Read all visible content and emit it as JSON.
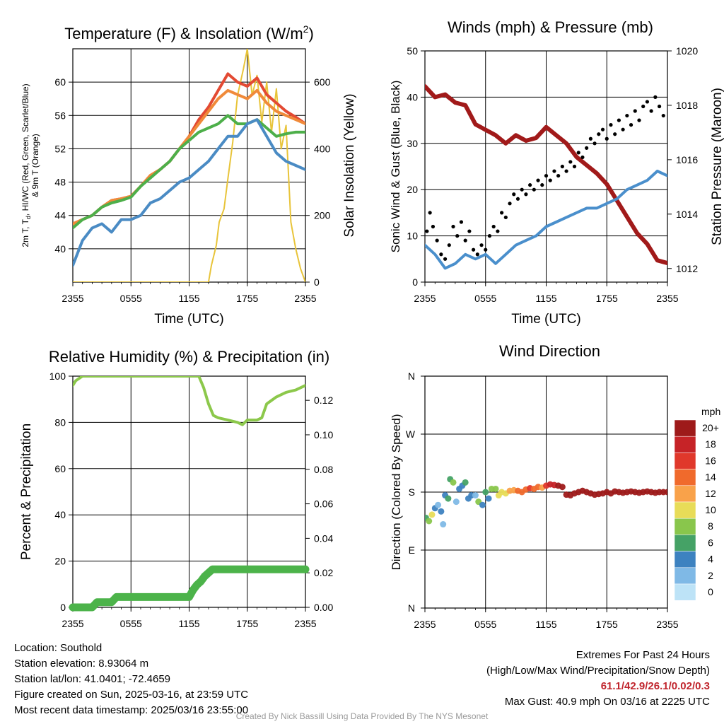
{
  "chart_data": [
    {
      "type": "line",
      "title": "Temperature (F) & Insolation (W/m",
      "title_sup": "2",
      "title_close": ")",
      "xlabel": "Time (UTC)",
      "ylabel_lines": [
        "2m T, T",
        "d",
        ", HI/WC (Red, Green, Scarlet/Blue)",
        "& 9m T (Orange)"
      ],
      "y2label": "Solar Insolation (Yellow)",
      "x_ticks": [
        "2355",
        "0555",
        "1155",
        "1755",
        "2355"
      ],
      "ylim": [
        36,
        64
      ],
      "y_ticks": [
        40,
        44,
        48,
        52,
        56,
        60
      ],
      "y2lim": [
        0,
        700
      ],
      "y2_ticks": [
        0,
        200,
        400,
        600
      ],
      "grid": true,
      "series": [
        {
          "color": "#e8c43a",
          "axis": "y2",
          "x": [
            0,
            3,
            6,
            9,
            12,
            14,
            14.3,
            14.8,
            15.1,
            15.6,
            16,
            16.5,
            17,
            17.6,
            18,
            18.5,
            19,
            19.5,
            20,
            20.5,
            21,
            21.5,
            22,
            22.5,
            23,
            23.5,
            24
          ],
          "values": [
            0,
            0,
            0,
            0,
            0,
            0,
            50,
            110,
            180,
            220,
            310,
            420,
            560,
            640,
            700,
            560,
            620,
            480,
            600,
            450,
            580,
            400,
            470,
            180,
            100,
            40,
            0
          ]
        },
        {
          "color": "#e34a33",
          "axis": "y",
          "x": [
            0,
            1,
            2,
            3,
            4,
            5,
            6,
            7,
            8,
            9,
            10,
            11,
            12,
            13,
            14,
            15,
            16,
            17,
            18,
            19,
            20,
            21,
            22,
            23,
            24
          ],
          "values": [
            43,
            43.5,
            44,
            45,
            45.8,
            46,
            46.3,
            47.5,
            48.8,
            49.5,
            50.5,
            52,
            53.5,
            55.5,
            57,
            59,
            61,
            60,
            59.5,
            60.5,
            58.5,
            57.5,
            56.5,
            55.8,
            55
          ]
        },
        {
          "color": "#f08a3a",
          "axis": "y",
          "x": [
            0,
            1,
            2,
            3,
            4,
            5,
            6,
            7,
            8,
            9,
            10,
            11,
            12,
            13,
            14,
            15,
            16,
            17,
            18,
            19,
            20,
            21,
            22,
            23,
            24
          ],
          "values": [
            43,
            43.5,
            44,
            45,
            45.8,
            46,
            46.3,
            47.5,
            48.8,
            49.5,
            50.5,
            52,
            53.5,
            55,
            56.5,
            58,
            59,
            58.5,
            58,
            59,
            57.5,
            56.5,
            56,
            55.5,
            55
          ]
        },
        {
          "color": "#4daf4a",
          "axis": "y",
          "x": [
            0,
            1,
            2,
            3,
            4,
            5,
            6,
            7,
            8,
            9,
            10,
            11,
            12,
            13,
            14,
            15,
            16,
            17,
            18,
            19,
            20,
            21,
            22,
            23,
            24
          ],
          "values": [
            42.5,
            43.5,
            44,
            45,
            45.5,
            45.8,
            46.2,
            47.5,
            48.5,
            49.5,
            50.5,
            52,
            53,
            54,
            54.5,
            55,
            56,
            55,
            55,
            55.5,
            54.5,
            53.5,
            53.8,
            54,
            54
          ]
        },
        {
          "color": "#4a8bc4",
          "axis": "y",
          "x": [
            0,
            1,
            2,
            3,
            4,
            5,
            6,
            7,
            8,
            9,
            10,
            11,
            12,
            13,
            14,
            15,
            16,
            17,
            18,
            19,
            20,
            21,
            22,
            23,
            24
          ],
          "values": [
            38,
            41,
            42.5,
            43,
            42,
            43.5,
            43.5,
            44,
            45.5,
            46,
            47,
            48,
            48.5,
            49.5,
            50.5,
            52,
            53.5,
            53.5,
            55,
            55.5,
            53.5,
            51.5,
            50.5,
            50,
            49.5
          ]
        }
      ]
    },
    {
      "type": "line",
      "title": "Winds (mph) & Pressure (mb)",
      "xlabel": "Time (UTC)",
      "ylabel": "Sonic Wind & Gust (Blue, Black)",
      "y2label": "Station Pressure (Maroon)",
      "x_ticks": [
        "2355",
        "0555",
        "1155",
        "1755",
        "2355"
      ],
      "ylim": [
        0,
        50
      ],
      "y_ticks": [
        0,
        10,
        20,
        30,
        40,
        50
      ],
      "y2lim": [
        1011.5,
        1020
      ],
      "y2_ticks": [
        1012,
        1014,
        1016,
        1018,
        1020
      ],
      "grid": true,
      "series": [
        {
          "color": "#a11a1a",
          "axis": "y2",
          "x": [
            0,
            1,
            2,
            3,
            4,
            5,
            6,
            7,
            8,
            9,
            10,
            11,
            12,
            13,
            14,
            15,
            16,
            17,
            18,
            19,
            20,
            21,
            22,
            23,
            24
          ],
          "values": [
            1018.7,
            1018.3,
            1018.4,
            1018.1,
            1018,
            1017.3,
            1017.1,
            1016.9,
            1016.6,
            1016.9,
            1016.7,
            1016.8,
            1017.2,
            1016.9,
            1016.6,
            1016.1,
            1015.8,
            1015.5,
            1015.1,
            1014.5,
            1013.9,
            1013.3,
            1012.9,
            1012.3,
            1012.2
          ]
        },
        {
          "color": "#4a8fcc",
          "axis": "y",
          "x": [
            0,
            1,
            2,
            3,
            4,
            5,
            6,
            7,
            8,
            9,
            10,
            11,
            12,
            13,
            14,
            15,
            16,
            17,
            18,
            19,
            20,
            21,
            22,
            23,
            24
          ],
          "values": [
            8,
            6,
            3,
            4,
            6,
            5,
            6,
            4,
            6,
            8,
            9,
            10,
            12,
            13,
            14,
            15,
            16,
            16,
            17,
            18,
            20,
            21,
            22,
            24,
            23
          ]
        }
      ],
      "gust_points": {
        "color": "#000000",
        "x": [
          0.2,
          0.5,
          0.8,
          1.2,
          1.6,
          2,
          2.4,
          2.8,
          3.2,
          3.6,
          4,
          4.4,
          4.8,
          5.2,
          5.6,
          6,
          6.4,
          6.8,
          7.2,
          7.6,
          8,
          8.4,
          8.8,
          9.2,
          9.6,
          10,
          10.4,
          10.8,
          11.2,
          11.6,
          12,
          12.4,
          12.8,
          13.2,
          13.6,
          14,
          14.4,
          14.8,
          15.2,
          15.6,
          16,
          16.4,
          16.8,
          17.2,
          17.6,
          18,
          18.4,
          18.8,
          19.2,
          19.6,
          20,
          20.4,
          20.8,
          21.2,
          21.6,
          22,
          22.4,
          22.8,
          23.2,
          23.6
        ],
        "values": [
          11,
          15,
          12,
          9,
          6,
          5,
          8,
          12,
          10,
          13,
          9,
          11,
          7,
          6,
          8,
          7,
          10,
          12,
          11,
          15,
          14,
          17,
          19,
          18,
          20,
          19,
          21,
          20,
          22,
          21,
          23,
          22,
          24,
          23,
          25,
          24,
          26,
          25,
          28,
          27,
          29,
          31,
          30,
          32,
          33,
          31,
          34,
          32,
          35,
          33,
          36,
          34,
          37,
          35,
          38,
          39,
          37,
          40,
          38,
          36
        ]
      }
    },
    {
      "type": "line",
      "title": "Relative Humidity (%) & Precipitation (in)",
      "ylabel": "Percent & Precipitation",
      "x_ticks": [
        "2355",
        "0555",
        "1155",
        "1755",
        "2355"
      ],
      "ylim": [
        0,
        100
      ],
      "y_ticks": [
        0,
        20,
        40,
        60,
        80,
        100
      ],
      "y2lim": [
        0,
        0.134
      ],
      "y2_ticks": [
        "0.00",
        "0.02",
        "0.04",
        "0.06",
        "0.08",
        "0.10",
        "0.12"
      ],
      "grid": true,
      "series": [
        {
          "color": "#8cc84b",
          "axis": "y",
          "x": [
            0,
            0.3,
            1,
            2,
            3,
            6,
            9,
            12,
            13,
            13.5,
            14,
            14.5,
            15,
            16,
            17,
            17.5,
            18,
            19,
            19.5,
            20,
            21,
            22,
            23,
            24
          ],
          "values": [
            96,
            98,
            100,
            100,
            100,
            100,
            100,
            100,
            100,
            95,
            88,
            83,
            82,
            81,
            80,
            79,
            81,
            81,
            82,
            88,
            91,
            93,
            94,
            96
          ]
        },
        {
          "color": "#4cb34a",
          "axis": "y2",
          "x": [
            0,
            2,
            2.5,
            4,
            4.5,
            6,
            8,
            10,
            12,
            12.4,
            12.8,
            13.2,
            13.6,
            14,
            14.4,
            15,
            17,
            20,
            24
          ],
          "values": [
            0,
            0,
            0.003,
            0.003,
            0.006,
            0.006,
            0.006,
            0.006,
            0.006,
            0.01,
            0.013,
            0.015,
            0.018,
            0.02,
            0.022,
            0.022,
            0.022,
            0.022,
            0.022
          ]
        }
      ]
    },
    {
      "type": "scatter",
      "title": "Wind Direction",
      "ylabel": "Direction (Colored By Speed)",
      "x_ticks": [
        "2355",
        "0555",
        "1155",
        "1755",
        "2355"
      ],
      "y_ticks": [
        "N",
        "E",
        "S",
        "W",
        "N"
      ],
      "ylim": [
        0,
        360
      ],
      "grid": true,
      "colorbar": {
        "title": "mph",
        "labels": [
          "20+",
          "18",
          "16",
          "14",
          "12",
          "10",
          "8",
          "6",
          "4",
          "2",
          "0"
        ],
        "colors": [
          "#9e1a1a",
          "#c62327",
          "#e0382b",
          "#f06a2c",
          "#f9a24a",
          "#e8dc58",
          "#89c64c",
          "#45a266",
          "#3d82c0",
          "#7fb9e6",
          "#bde3f7"
        ]
      },
      "points": {
        "x": [
          0.1,
          0.4,
          0.7,
          1,
          1.3,
          1.6,
          1.8,
          2,
          2.3,
          2.5,
          2.8,
          3.1,
          3.4,
          3.7,
          4,
          4.3,
          4.6,
          5,
          5.3,
          5.7,
          6,
          6.3,
          6.6,
          7,
          7.3,
          7.6,
          8,
          8.4,
          8.8,
          9.2,
          9.6,
          10,
          10.4,
          10.8,
          11.2,
          11.6,
          12,
          12.4,
          12.8,
          13.2,
          13.6,
          14,
          14.4,
          14.8,
          15.2,
          15.6,
          16,
          16.4,
          16.8,
          17.2,
          17.6,
          18,
          18.4,
          18.8,
          19.2,
          19.6,
          20,
          20.4,
          20.8,
          21.2,
          21.6,
          22,
          22.4,
          22.8,
          23.2,
          23.6,
          24
        ],
        "y": [
          140,
          135,
          145,
          155,
          160,
          150,
          130,
          175,
          170,
          200,
          195,
          165,
          185,
          190,
          195,
          170,
          175,
          175,
          165,
          160,
          180,
          170,
          185,
          185,
          175,
          180,
          178,
          182,
          183,
          182,
          180,
          184,
          186,
          185,
          188,
          187,
          190,
          192,
          191,
          190,
          188,
          176,
          175,
          178,
          180,
          182,
          180,
          178,
          176,
          177,
          178,
          180,
          178,
          181,
          180,
          179,
          180,
          181,
          180,
          179,
          180,
          181,
          180,
          179,
          180,
          180,
          180
        ],
        "speeds": [
          6,
          9,
          10,
          4,
          2,
          4,
          2,
          4,
          6,
          6,
          8,
          3,
          4,
          5,
          6,
          4,
          4,
          3,
          8,
          4,
          6,
          4,
          8,
          9,
          10,
          11,
          11,
          12,
          13,
          14,
          14,
          15,
          16,
          15,
          14,
          13,
          16,
          18,
          19,
          20,
          20,
          20,
          20,
          20,
          20,
          20,
          20,
          20,
          20,
          20,
          20,
          20,
          20,
          20,
          20,
          20,
          20,
          20,
          20,
          20,
          20,
          20,
          20,
          20,
          20,
          20,
          20
        ]
      }
    }
  ],
  "footer": {
    "location": "Location: Southold",
    "elevation": "Station elevation: 8.93064 m",
    "latlon": "Station lat/lon: 41.0401; -72.4659",
    "created": "Figure created on Sun, 2025-03-16, at 23:59 UTC",
    "recent": "Most recent data timestamp: 2025/03/16 23:55:00",
    "extremes_title": "Extremes For Past 24 Hours",
    "extremes_legend": "(High/Low/Max Wind/Precipitation/Snow Depth)",
    "extremes_values": "61.1/42.9/26.1/0.02/0.3",
    "max_gust": "Max Gust: 40.9 mph On 03/16 at 2225 UTC",
    "credit": "Created By Nick Bassill Using Data Provided By The NYS Mesonet"
  }
}
